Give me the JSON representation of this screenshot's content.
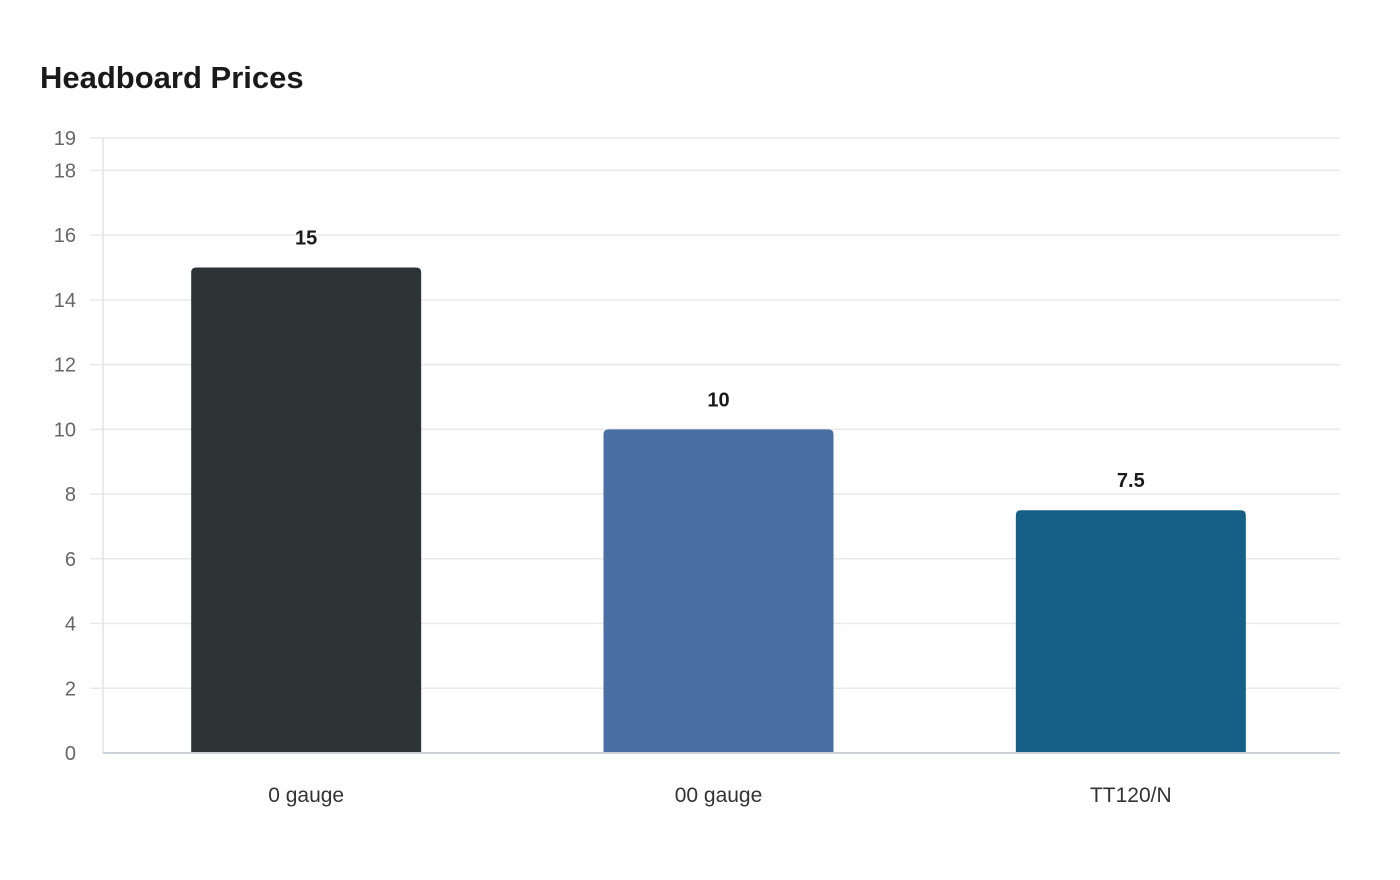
{
  "title": "Headboard Prices",
  "chart_data": {
    "type": "bar",
    "title": "Headboard Prices",
    "xlabel": "",
    "ylabel": "",
    "categories": [
      "0 gauge",
      "00 gauge",
      "TT120/N"
    ],
    "values": [
      15,
      10,
      7.5
    ],
    "value_labels": [
      "15",
      "10",
      "7.5"
    ],
    "colors": [
      "#2d3436",
      "#4a6fa5",
      "#166088"
    ],
    "ylim": [
      0,
      19
    ],
    "yticks": [
      0,
      2,
      4,
      6,
      8,
      10,
      12,
      14,
      16,
      18,
      19
    ],
    "grid": true,
    "legend": "none"
  },
  "style": {
    "gridline_color": "#e9e9e9",
    "axis_color": "#cfd2d8",
    "tick_label_color": "#666666",
    "category_label_color": "#333333",
    "value_label_color": "#1a1a1a"
  }
}
